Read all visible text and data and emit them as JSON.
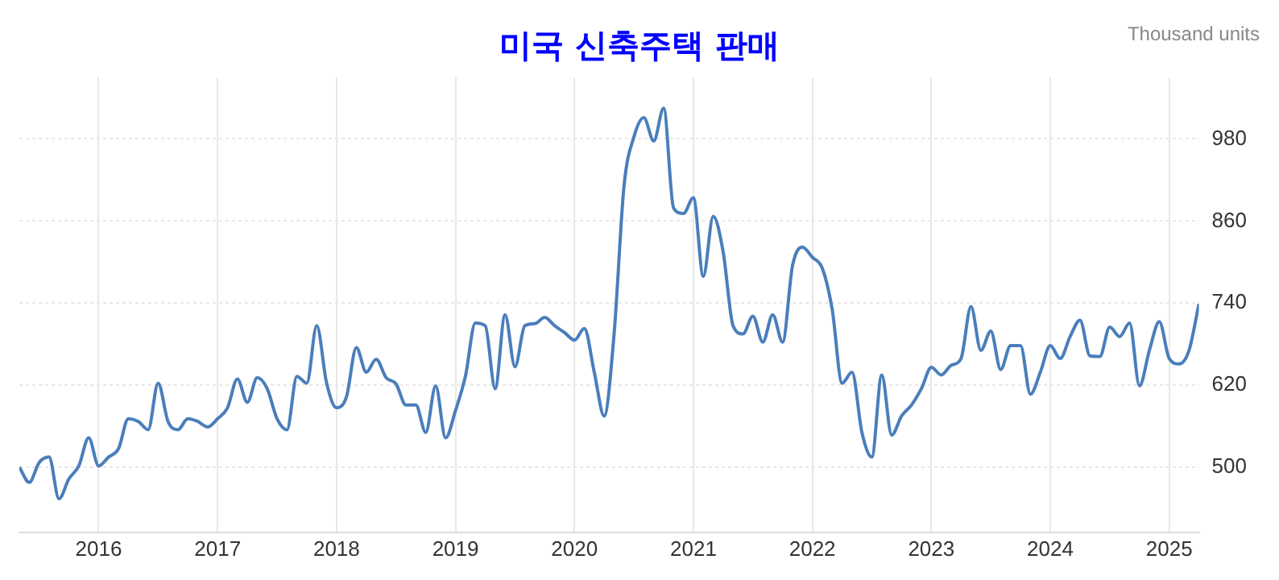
{
  "chart_data": {
    "type": "line",
    "title": "미국 신축주택 판매",
    "ylabel": "Thousand units",
    "x": [
      "2015-05",
      "2015-06",
      "2015-07",
      "2015-08",
      "2015-09",
      "2015-10",
      "2015-11",
      "2015-12",
      "2016-01",
      "2016-02",
      "2016-03",
      "2016-04",
      "2016-05",
      "2016-06",
      "2016-07",
      "2016-08",
      "2016-09",
      "2016-10",
      "2016-11",
      "2016-12",
      "2017-01",
      "2017-02",
      "2017-03",
      "2017-04",
      "2017-05",
      "2017-06",
      "2017-07",
      "2017-08",
      "2017-09",
      "2017-10",
      "2017-11",
      "2017-12",
      "2018-01",
      "2018-02",
      "2018-03",
      "2018-04",
      "2018-05",
      "2018-06",
      "2018-07",
      "2018-08",
      "2018-09",
      "2018-10",
      "2018-11",
      "2018-12",
      "2019-01",
      "2019-02",
      "2019-03",
      "2019-04",
      "2019-05",
      "2019-06",
      "2019-07",
      "2019-08",
      "2019-09",
      "2019-10",
      "2019-11",
      "2019-12",
      "2020-01",
      "2020-02",
      "2020-03",
      "2020-04",
      "2020-05",
      "2020-06",
      "2020-07",
      "2020-08",
      "2020-09",
      "2020-10",
      "2020-11",
      "2020-12",
      "2021-01",
      "2021-02",
      "2021-03",
      "2021-04",
      "2021-05",
      "2021-06",
      "2021-07",
      "2021-08",
      "2021-09",
      "2021-10",
      "2021-11",
      "2021-12",
      "2022-01",
      "2022-02",
      "2022-03",
      "2022-04",
      "2022-05",
      "2022-06",
      "2022-07",
      "2022-08",
      "2022-09",
      "2022-10",
      "2022-11",
      "2022-12",
      "2023-01",
      "2023-02",
      "2023-03",
      "2023-04",
      "2023-05",
      "2023-06",
      "2023-07",
      "2023-08",
      "2023-09",
      "2023-10",
      "2023-11",
      "2023-12",
      "2024-01",
      "2024-02",
      "2024-03",
      "2024-04",
      "2024-05",
      "2024-06",
      "2024-07",
      "2024-08",
      "2024-09",
      "2024-10",
      "2024-11",
      "2024-12",
      "2025-01",
      "2025-02",
      "2025-03",
      "2025-04"
    ],
    "series": [
      {
        "color": "#4a7ebb",
        "values": [
          500,
          478,
          507,
          515,
          454,
          483,
          502,
          543,
          502,
          515,
          527,
          571,
          567,
          555,
          623,
          567,
          555,
          571,
          567,
          559,
          571,
          587,
          629,
          595,
          631,
          615,
          571,
          555,
          633,
          623,
          707,
          623,
          587,
          603,
          675,
          639,
          658,
          631,
          622,
          591,
          591,
          551,
          619,
          543,
          583,
          633,
          711,
          707,
          615,
          723,
          647,
          707,
          710,
          719,
          707,
          697,
          686,
          703,
          639,
          575,
          695,
          911,
          983,
          1011,
          977,
          1025,
          879,
          871,
          894,
          779,
          867,
          815,
          707,
          695,
          721,
          683,
          723,
          683,
          795,
          822,
          807,
          791,
          731,
          623,
          639,
          551,
          515,
          635,
          547,
          575,
          591,
          615,
          646,
          635,
          649,
          659,
          735,
          671,
          699,
          643,
          678,
          678,
          607,
          639,
          678,
          659,
          691,
          715,
          663,
          662,
          705,
          691,
          711,
          619,
          671,
          713,
          659,
          651,
          671,
          739
        ]
      }
    ],
    "xlim": [
      "2015-05",
      "2025-04"
    ],
    "xticks": [
      "2016",
      "2017",
      "2018",
      "2019",
      "2020",
      "2021",
      "2022",
      "2023",
      "2024",
      "2025"
    ],
    "ylim": [
      405,
      1070
    ],
    "yticks": [
      500,
      620,
      740,
      860,
      980
    ],
    "grid": true,
    "legend": false,
    "marker": "none",
    "line_style": "solid"
  }
}
